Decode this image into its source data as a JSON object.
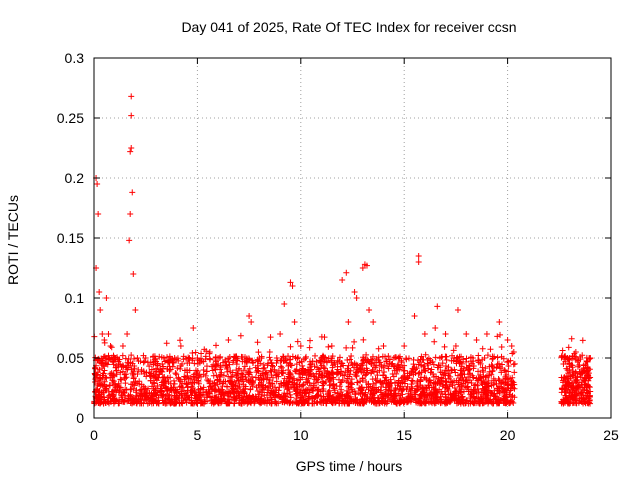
{
  "chart_data": {
    "type": "scatter",
    "title": "Day 041 of 2025, Rate Of TEC Index for receiver ccsn",
    "xlabel": "GPS time / hours",
    "ylabel": "ROTI / TECUs",
    "xlim": [
      0,
      25
    ],
    "ylim": [
      0,
      0.3
    ],
    "xticks": [
      0,
      5,
      10,
      15,
      20,
      25
    ],
    "yticks": [
      0,
      0.05,
      0.1,
      0.15,
      0.2,
      0.25,
      0.3
    ],
    "xtick_labels": [
      "0",
      "5",
      "10",
      "15",
      "20",
      "25"
    ],
    "ytick_labels": [
      "0",
      "0.05",
      "0.1",
      "0.15",
      "0.2",
      "0.25",
      "0.3"
    ],
    "grid": true,
    "marker": "+",
    "color": "#ff0000",
    "series": [
      {
        "name": "ROTI",
        "x": [
          0.05,
          0.1,
          0.1,
          0.15,
          0.2,
          0.25,
          0.3,
          0.4,
          0.5,
          0.6,
          0.7,
          0.8,
          1.0,
          1.2,
          1.4,
          1.6,
          1.7,
          1.75,
          1.75,
          1.8,
          1.8,
          1.8,
          1.85,
          1.9,
          2.0,
          2.1,
          2.3,
          2.5,
          2.8,
          3.0,
          3.3,
          3.6,
          3.9,
          4.2,
          4.5,
          4.8,
          5.0,
          5.3,
          5.6,
          6.0,
          6.5,
          7.0,
          7.5,
          7.6,
          8.0,
          8.5,
          9.0,
          9.2,
          9.5,
          9.6,
          9.7,
          10.0,
          10.5,
          11.0,
          11.5,
          12.0,
          12.2,
          12.3,
          12.6,
          12.7,
          13.0,
          13.1,
          13.2,
          13.3,
          13.5,
          14.0,
          14.5,
          15.0,
          15.5,
          15.7,
          15.7,
          16.0,
          16.5,
          16.6,
          17.0,
          17.5,
          17.6,
          18.0,
          18.5,
          19.0,
          19.5,
          19.6,
          20.0,
          20.2,
          20.3,
          22.7,
          22.9,
          23.1,
          23.3,
          23.6,
          23.9,
          24.0
        ],
        "y": [
          0.03,
          0.125,
          0.2,
          0.195,
          0.17,
          0.105,
          0.09,
          0.07,
          0.065,
          0.1,
          0.07,
          0.06,
          0.05,
          0.045,
          0.06,
          0.07,
          0.148,
          0.17,
          0.222,
          0.225,
          0.252,
          0.268,
          0.188,
          0.12,
          0.09,
          0.05,
          0.04,
          0.05,
          0.035,
          0.04,
          0.045,
          0.03,
          0.05,
          0.06,
          0.04,
          0.075,
          0.05,
          0.04,
          0.055,
          0.05,
          0.065,
          0.04,
          0.085,
          0.08,
          0.05,
          0.055,
          0.07,
          0.095,
          0.113,
          0.11,
          0.08,
          0.06,
          0.045,
          0.05,
          0.06,
          0.115,
          0.121,
          0.08,
          0.105,
          0.1,
          0.125,
          0.128,
          0.127,
          0.09,
          0.08,
          0.06,
          0.05,
          0.06,
          0.085,
          0.135,
          0.13,
          0.07,
          0.075,
          0.093,
          0.07,
          0.06,
          0.09,
          0.07,
          0.065,
          0.07,
          0.068,
          0.08,
          0.065,
          0.06,
          0.055,
          0.045,
          0.05,
          0.066,
          0.055,
          0.04,
          0.035,
          0.05
        ],
        "note": "Dense band of ROTI values between approx. 0.01 and 0.05 TECU/min from 0 to 20.3 h and from 22.6 to 24.0 h; listed points are notable peaks. Data gap 20.3–22.6 h."
      }
    ]
  }
}
